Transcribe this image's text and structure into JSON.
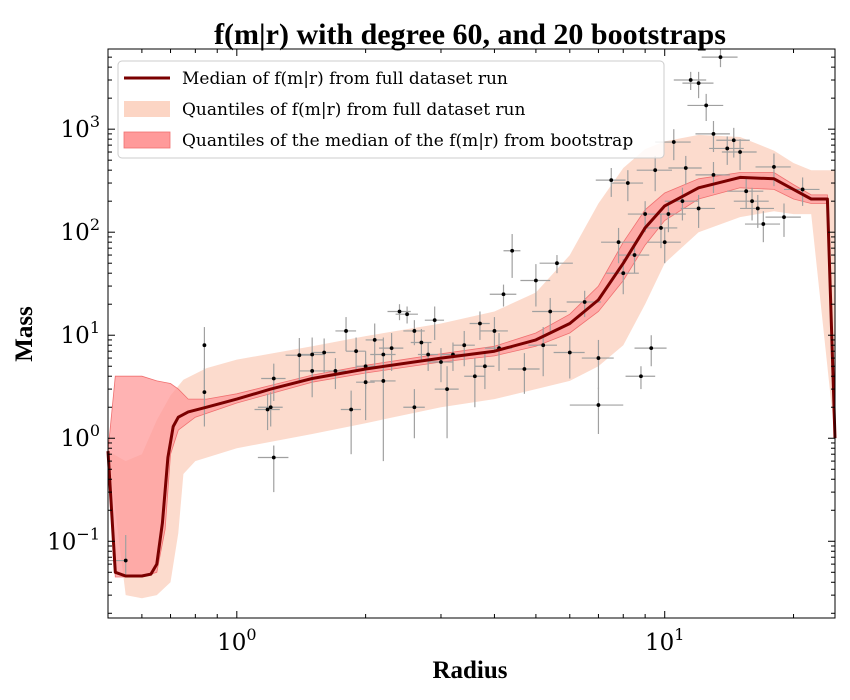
{
  "chart_data": {
    "type": "scatter",
    "title": "f(m|r) with degree 60, and 20 bootstraps",
    "xlabel": "Radius",
    "ylabel": "Mass",
    "xscale": "log",
    "yscale": "log",
    "xlim": [
      0.5,
      25
    ],
    "ylim": [
      0.018,
      6000
    ],
    "xticks": [
      {
        "value": 1,
        "base": "10",
        "exp": "0"
      },
      {
        "value": 10,
        "base": "10",
        "exp": "1"
      }
    ],
    "yticks": [
      {
        "value": 0.1,
        "base": "10",
        "exp": "−1"
      },
      {
        "value": 1,
        "base": "10",
        "exp": "0"
      },
      {
        "value": 10,
        "base": "10",
        "exp": "1"
      },
      {
        "value": 100,
        "base": "10",
        "exp": "2"
      },
      {
        "value": 1000,
        "base": "10",
        "exp": "3"
      }
    ],
    "grid": false,
    "legend_position": "top-left",
    "legend": [
      {
        "label": "Median of f(m|r) from full dataset run",
        "kind": "line",
        "color": "#7a0000"
      },
      {
        "label": "Quantiles of f(m|r) from full dataset run",
        "kind": "band",
        "color": "#fcd5c4"
      },
      {
        "label": "Quantiles of the median of the f(m|r) from bootstrap",
        "kind": "band",
        "color": "#ff9a9a"
      }
    ],
    "median_line": {
      "color": "#7a0000",
      "points": [
        [
          0.5,
          0.75
        ],
        [
          0.52,
          0.05
        ],
        [
          0.55,
          0.046
        ],
        [
          0.6,
          0.046
        ],
        [
          0.63,
          0.048
        ],
        [
          0.65,
          0.06
        ],
        [
          0.67,
          0.15
        ],
        [
          0.69,
          0.65
        ],
        [
          0.71,
          1.3
        ],
        [
          0.73,
          1.6
        ],
        [
          0.77,
          1.8
        ],
        [
          0.85,
          2.0
        ],
        [
          1.0,
          2.4
        ],
        [
          1.2,
          3.0
        ],
        [
          1.5,
          3.8
        ],
        [
          2.0,
          4.7
        ],
        [
          3.0,
          6.0
        ],
        [
          4.0,
          7.0
        ],
        [
          5.0,
          9.0
        ],
        [
          6.0,
          13.0
        ],
        [
          7.0,
          22.0
        ],
        [
          8.0,
          50.0
        ],
        [
          9.0,
          110.0
        ],
        [
          10.0,
          180.0
        ],
        [
          12.0,
          270.0
        ],
        [
          15.0,
          340.0
        ],
        [
          18.0,
          330.0
        ],
        [
          20.0,
          260.0
        ],
        [
          22.0,
          210.0
        ],
        [
          24.0,
          210.0
        ],
        [
          25.0,
          1.0
        ]
      ]
    },
    "outer_band": {
      "color": "#fcd5c4",
      "upper": [
        [
          0.5,
          0.75
        ],
        [
          0.55,
          0.6
        ],
        [
          0.6,
          0.7
        ],
        [
          0.65,
          1.5
        ],
        [
          0.7,
          2.6
        ],
        [
          0.75,
          3.7
        ],
        [
          0.85,
          4.8
        ],
        [
          1.0,
          5.8
        ],
        [
          1.5,
          7.8
        ],
        [
          2.0,
          9.8
        ],
        [
          3.0,
          13.0
        ],
        [
          4.0,
          17.0
        ],
        [
          5.0,
          26.0
        ],
        [
          6.0,
          60.0
        ],
        [
          7.0,
          190.0
        ],
        [
          8.0,
          420.0
        ],
        [
          9.0,
          640.0
        ],
        [
          10.0,
          760.0
        ],
        [
          12.0,
          880.0
        ],
        [
          15.0,
          840.0
        ],
        [
          18.0,
          620.0
        ],
        [
          20.0,
          470.0
        ],
        [
          22.0,
          400.0
        ],
        [
          25.0,
          400.0
        ]
      ],
      "lower": [
        [
          0.5,
          0.75
        ],
        [
          0.55,
          0.03
        ],
        [
          0.6,
          0.028
        ],
        [
          0.65,
          0.03
        ],
        [
          0.7,
          0.04
        ],
        [
          0.73,
          0.12
        ],
        [
          0.75,
          0.45
        ],
        [
          0.8,
          0.6
        ],
        [
          1.0,
          0.8
        ],
        [
          1.5,
          1.1
        ],
        [
          2.0,
          1.4
        ],
        [
          3.0,
          2.0
        ],
        [
          4.0,
          2.4
        ],
        [
          5.0,
          3.0
        ],
        [
          6.0,
          3.6
        ],
        [
          7.0,
          5.0
        ],
        [
          8.0,
          8.0
        ],
        [
          9.0,
          20.0
        ],
        [
          10.0,
          50.0
        ],
        [
          12.0,
          100.0
        ],
        [
          15.0,
          140.0
        ],
        [
          18.0,
          160.0
        ],
        [
          20.0,
          150.0
        ],
        [
          22.0,
          150.0
        ],
        [
          25.0,
          1.0
        ]
      ]
    },
    "inner_band": {
      "color": "#ff9a9a",
      "upper": [
        [
          0.5,
          0.75
        ],
        [
          0.52,
          4.0
        ],
        [
          0.6,
          4.0
        ],
        [
          0.65,
          3.6
        ],
        [
          0.7,
          3.4
        ],
        [
          0.73,
          3.0
        ],
        [
          0.77,
          2.4
        ],
        [
          0.85,
          2.4
        ],
        [
          1.0,
          2.7
        ],
        [
          1.5,
          4.1
        ],
        [
          2.0,
          5.1
        ],
        [
          3.0,
          6.6
        ],
        [
          4.0,
          7.8
        ],
        [
          5.0,
          10.5
        ],
        [
          6.0,
          16.0
        ],
        [
          7.0,
          30.0
        ],
        [
          8.0,
          80.0
        ],
        [
          9.0,
          165.0
        ],
        [
          10.0,
          240.0
        ],
        [
          12.0,
          330.0
        ],
        [
          15.0,
          380.0
        ],
        [
          18.0,
          380.0
        ],
        [
          20.0,
          290.0
        ],
        [
          22.0,
          230.0
        ],
        [
          24.0,
          230.0
        ],
        [
          25.0,
          1.0
        ]
      ],
      "lower": [
        [
          0.5,
          0.75
        ],
        [
          0.52,
          0.045
        ],
        [
          0.6,
          0.045
        ],
        [
          0.65,
          0.05
        ],
        [
          0.68,
          0.13
        ],
        [
          0.7,
          0.7
        ],
        [
          0.73,
          1.2
        ],
        [
          0.8,
          1.6
        ],
        [
          1.0,
          2.2
        ],
        [
          1.5,
          3.5
        ],
        [
          2.0,
          4.3
        ],
        [
          3.0,
          5.5
        ],
        [
          4.0,
          6.3
        ],
        [
          5.0,
          7.8
        ],
        [
          6.0,
          10.5
        ],
        [
          7.0,
          17.0
        ],
        [
          8.0,
          34.0
        ],
        [
          9.0,
          75.0
        ],
        [
          10.0,
          130.0
        ],
        [
          12.0,
          210.0
        ],
        [
          15.0,
          270.0
        ],
        [
          18.0,
          260.0
        ],
        [
          20.0,
          210.0
        ],
        [
          22.0,
          190.0
        ],
        [
          24.0,
          190.0
        ],
        [
          25.0,
          1.0
        ]
      ]
    },
    "points": [
      [
        0.55,
        0.065,
        0.05,
        0.0,
        0.02,
        0.05
      ],
      [
        0.84,
        8.0,
        0.0,
        0.0,
        5.0,
        4.0
      ],
      [
        0.84,
        2.8,
        0.0,
        0.0,
        1.5,
        2.0
      ],
      [
        1.18,
        1.9,
        0.08,
        0.08,
        0.7,
        0.8
      ],
      [
        1.2,
        2.0,
        0.08,
        0.08,
        0.7,
        0.8
      ],
      [
        1.22,
        0.65,
        0.1,
        0.1,
        0.35,
        0.2
      ],
      [
        1.22,
        3.8,
        0.08,
        0.08,
        1.5,
        1.5
      ],
      [
        1.4,
        6.4,
        0.1,
        0.1,
        3.0,
        3.0
      ],
      [
        1.5,
        4.5,
        0.1,
        0.1,
        2.0,
        2.0
      ],
      [
        1.5,
        6.5,
        0.1,
        0.1,
        3.0,
        3.0
      ],
      [
        1.6,
        6.8,
        0.1,
        0.1,
        2.5,
        2.5
      ],
      [
        1.7,
        4.5,
        0.1,
        0.1,
        1.5,
        1.5
      ],
      [
        1.8,
        11.0,
        0.1,
        0.1,
        4.0,
        4.0
      ],
      [
        1.85,
        1.9,
        0.1,
        0.1,
        1.2,
        1.0
      ],
      [
        1.9,
        7.0,
        0.1,
        0.1,
        2.5,
        2.5
      ],
      [
        2.0,
        5.0,
        0.1,
        0.1,
        2.0,
        2.0
      ],
      [
        2.0,
        3.5,
        0.1,
        0.1,
        2.0,
        2.0
      ],
      [
        2.1,
        9.0,
        0.1,
        0.1,
        4.0,
        4.0
      ],
      [
        2.2,
        3.6,
        0.15,
        0.15,
        3.0,
        3.0
      ],
      [
        2.2,
        6.5,
        0.15,
        0.15,
        3.0,
        3.0
      ],
      [
        2.3,
        7.5,
        0.15,
        0.15,
        3.0,
        3.0
      ],
      [
        2.4,
        17.0,
        0.15,
        0.15,
        3.0,
        3.0
      ],
      [
        2.5,
        16.0,
        0.15,
        0.15,
        3.0,
        3.0
      ],
      [
        2.6,
        2.0,
        0.15,
        0.15,
        1.0,
        1.0
      ],
      [
        2.6,
        11.0,
        0.15,
        0.15,
        3.0,
        3.0
      ],
      [
        2.7,
        8.5,
        0.15,
        0.15,
        3.0,
        3.0
      ],
      [
        2.8,
        6.5,
        0.15,
        0.15,
        2.0,
        2.0
      ],
      [
        2.9,
        14.0,
        0.15,
        0.15,
        5.0,
        5.0
      ],
      [
        3.0,
        5.5,
        0.2,
        0.2,
        2.0,
        2.0
      ],
      [
        3.1,
        3.0,
        0.2,
        0.2,
        2.0,
        2.0
      ],
      [
        3.2,
        6.5,
        0.2,
        0.2,
        2.0,
        2.0
      ],
      [
        3.4,
        8.0,
        0.2,
        0.2,
        3.0,
        3.0
      ],
      [
        3.6,
        4.0,
        0.2,
        0.2,
        2.0,
        2.0
      ],
      [
        3.7,
        13.0,
        0.2,
        0.2,
        4.0,
        4.0
      ],
      [
        3.8,
        5.0,
        0.2,
        0.2,
        2.0,
        2.0
      ],
      [
        4.0,
        11.0,
        0.3,
        0.3,
        4.0,
        4.0
      ],
      [
        4.1,
        7.5,
        0.3,
        0.3,
        3.0,
        3.0
      ],
      [
        4.2,
        25.0,
        0.3,
        0.3,
        6.0,
        6.0
      ],
      [
        4.4,
        66.0,
        0.2,
        0.2,
        30.0,
        30.0
      ],
      [
        4.7,
        4.7,
        0.4,
        0.4,
        2.0,
        2.0
      ],
      [
        5.0,
        34.0,
        0.4,
        0.4,
        15.0,
        15.0
      ],
      [
        5.2,
        8.0,
        0.4,
        0.4,
        4.0,
        4.0
      ],
      [
        5.4,
        17.0,
        0.5,
        0.5,
        6.0,
        6.0
      ],
      [
        5.6,
        50.0,
        0.5,
        0.5,
        10.0,
        10.0
      ],
      [
        6.0,
        6.8,
        0.5,
        0.5,
        3.0,
        3.0
      ],
      [
        6.5,
        21.0,
        0.6,
        0.6,
        6.0,
        6.0
      ],
      [
        7.0,
        2.1,
        1.0,
        1.0,
        1.0,
        1.0
      ],
      [
        7.0,
        6.0,
        0.6,
        0.6,
        3.0,
        3.0
      ],
      [
        7.5,
        320.0,
        0.6,
        0.6,
        100.0,
        100.0
      ],
      [
        8.0,
        40.0,
        0.7,
        0.7,
        15.0,
        15.0
      ],
      [
        8.5,
        60.0,
        0.7,
        0.7,
        20.0,
        20.0
      ],
      [
        8.8,
        4.0,
        0.7,
        0.7,
        1.0,
        1.0
      ],
      [
        9.0,
        150.0,
        0.8,
        0.8,
        50.0,
        50.0
      ],
      [
        9.3,
        7.5,
        0.8,
        0.8,
        2.5,
        2.5
      ],
      [
        9.5,
        400.0,
        0.9,
        0.9,
        150.0,
        150.0
      ],
      [
        10.0,
        80.0,
        0.9,
        0.9,
        30.0,
        30.0
      ],
      [
        10.5,
        750.0,
        1.0,
        1.0,
        250.0,
        250.0
      ],
      [
        11.0,
        200.0,
        1.0,
        1.0,
        70.0,
        70.0
      ],
      [
        11.5,
        3000.0,
        1.0,
        1.0,
        600.0,
        600.0
      ],
      [
        12.0,
        2800.0,
        1.0,
        1.0,
        800.0,
        800.0
      ],
      [
        12.5,
        1700.0,
        1.2,
        1.2,
        500.0,
        500.0
      ],
      [
        13.0,
        900.0,
        1.2,
        1.2,
        300.0,
        300.0
      ],
      [
        13.5,
        5000.0,
        1.3,
        1.3,
        1000.0,
        1000.0
      ],
      [
        14.0,
        650.0,
        1.3,
        1.3,
        200.0,
        200.0
      ],
      [
        15.0,
        600.0,
        1.4,
        1.4,
        200.0,
        200.0
      ],
      [
        15.5,
        250.0,
        1.5,
        1.5,
        80.0,
        80.0
      ],
      [
        16.5,
        170.0,
        1.5,
        1.5,
        60.0,
        60.0
      ],
      [
        17.0,
        120.0,
        1.6,
        1.6,
        40.0,
        40.0
      ],
      [
        18.0,
        430.0,
        1.7,
        1.7,
        150.0,
        150.0
      ],
      [
        19.0,
        140.0,
        1.8,
        1.8,
        50.0,
        50.0
      ],
      [
        21.0,
        260.0,
        2.0,
        2.0,
        80.0,
        80.0
      ],
      [
        12.0,
        170.0,
        1.1,
        1.1,
        60.0,
        60.0
      ],
      [
        11.2,
        420.0,
        1.0,
        1.0,
        130.0,
        130.0
      ],
      [
        10.2,
        150.0,
        1.0,
        1.0,
        50.0,
        50.0
      ],
      [
        14.5,
        780.0,
        1.3,
        1.3,
        250.0,
        250.0
      ],
      [
        13.0,
        360.0,
        1.2,
        1.2,
        120.0,
        120.0
      ],
      [
        16.0,
        200.0,
        1.5,
        1.5,
        70.0,
        70.0
      ],
      [
        9.8,
        110.0,
        0.9,
        0.9,
        40.0,
        40.0
      ],
      [
        8.2,
        300.0,
        0.7,
        0.7,
        100.0,
        100.0
      ],
      [
        7.8,
        80.0,
        0.7,
        0.7,
        30.0,
        30.0
      ]
    ]
  }
}
